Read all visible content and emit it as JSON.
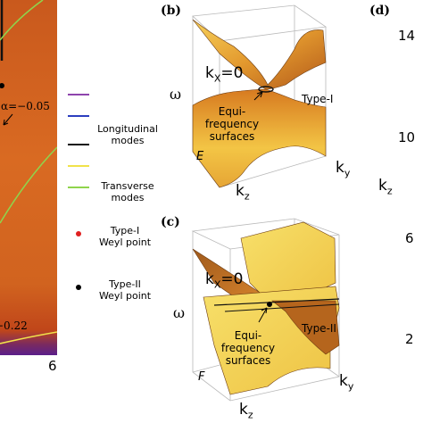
{
  "panel_a": {
    "alpha_label": "α=−0.05",
    "bottom_value": "−0.22",
    "tick": "6"
  },
  "legend": {
    "longitudinal": "Longitudinal modes",
    "longitudinal_1": "Longitudinal",
    "longitudinal_2": "modes",
    "transverse_1": "Transverse",
    "transverse_2": "modes",
    "type1_1": "Type-I",
    "type1_2": "Weyl point",
    "type2_1": "Type-II",
    "type2_2": "Weyl point",
    "line_colors": [
      "#8e44ad",
      "#2c3ebf",
      "#111111",
      "#f1e24a",
      "#8fd44c"
    ],
    "type1_color": "#e02020",
    "type2_color": "#000000"
  },
  "panel_b": {
    "label": "(b)",
    "kx": "k",
    "kx_sub": "X",
    "kx_eq": "=0",
    "omega": "ω",
    "type": "Type-I",
    "equi_1": "Equi-frequency",
    "equi_2": "surfaces",
    "corner": "E",
    "ky": "k",
    "ky_sub": "y",
    "kz": "k",
    "kz_sub": "z"
  },
  "panel_c": {
    "label": "(c)",
    "kx": "k",
    "kx_sub": "X",
    "kx_eq": "=0",
    "omega": "ω",
    "type": "Type-II",
    "equi_1": "Equi-frequency",
    "equi_2": "surfaces",
    "corner": "F",
    "ky": "k",
    "ky_sub": "y",
    "kz": "k",
    "kz_sub": "z"
  },
  "panel_d": {
    "label": "(d)",
    "ticks": [
      "14",
      "10",
      "6",
      "2"
    ],
    "axis": "k",
    "axis_sub": "z"
  }
}
